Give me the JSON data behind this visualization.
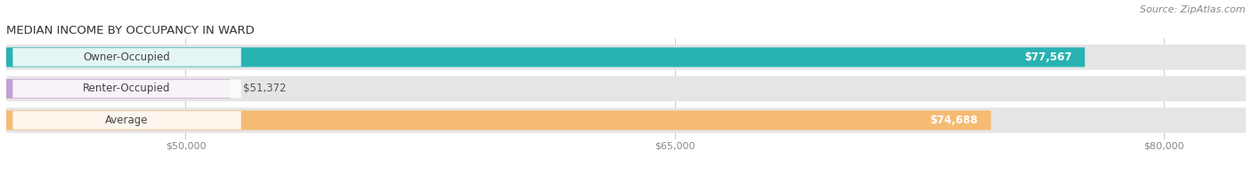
{
  "title": "MEDIAN INCOME BY OCCUPANCY IN WARD",
  "source": "Source: ZipAtlas.com",
  "categories": [
    "Owner-Occupied",
    "Renter-Occupied",
    "Average"
  ],
  "values": [
    77567,
    51372,
    74688
  ],
  "bar_colors": [
    "#28b2b2",
    "#c4a0d0",
    "#f5bb72"
  ],
  "bar_bg_color": "#e5e5e5",
  "value_labels": [
    "$77,567",
    "$51,372",
    "$74,688"
  ],
  "value_inside": [
    true,
    false,
    true
  ],
  "x_ticks": [
    50000,
    65000,
    80000
  ],
  "x_tick_labels": [
    "$50,000",
    "$65,000",
    "$80,000"
  ],
  "xmin": 44500,
  "xmax": 82500,
  "bar_height": 0.62,
  "background_color": "#ffffff",
  "title_fontsize": 9.5,
  "source_fontsize": 8,
  "label_fontsize": 8.5,
  "tick_fontsize": 8,
  "value_fontsize": 8.5,
  "grid_color": "#cccccc",
  "title_color": "#333333",
  "source_color": "#888888",
  "label_color": "#444444",
  "tick_color": "#888888"
}
